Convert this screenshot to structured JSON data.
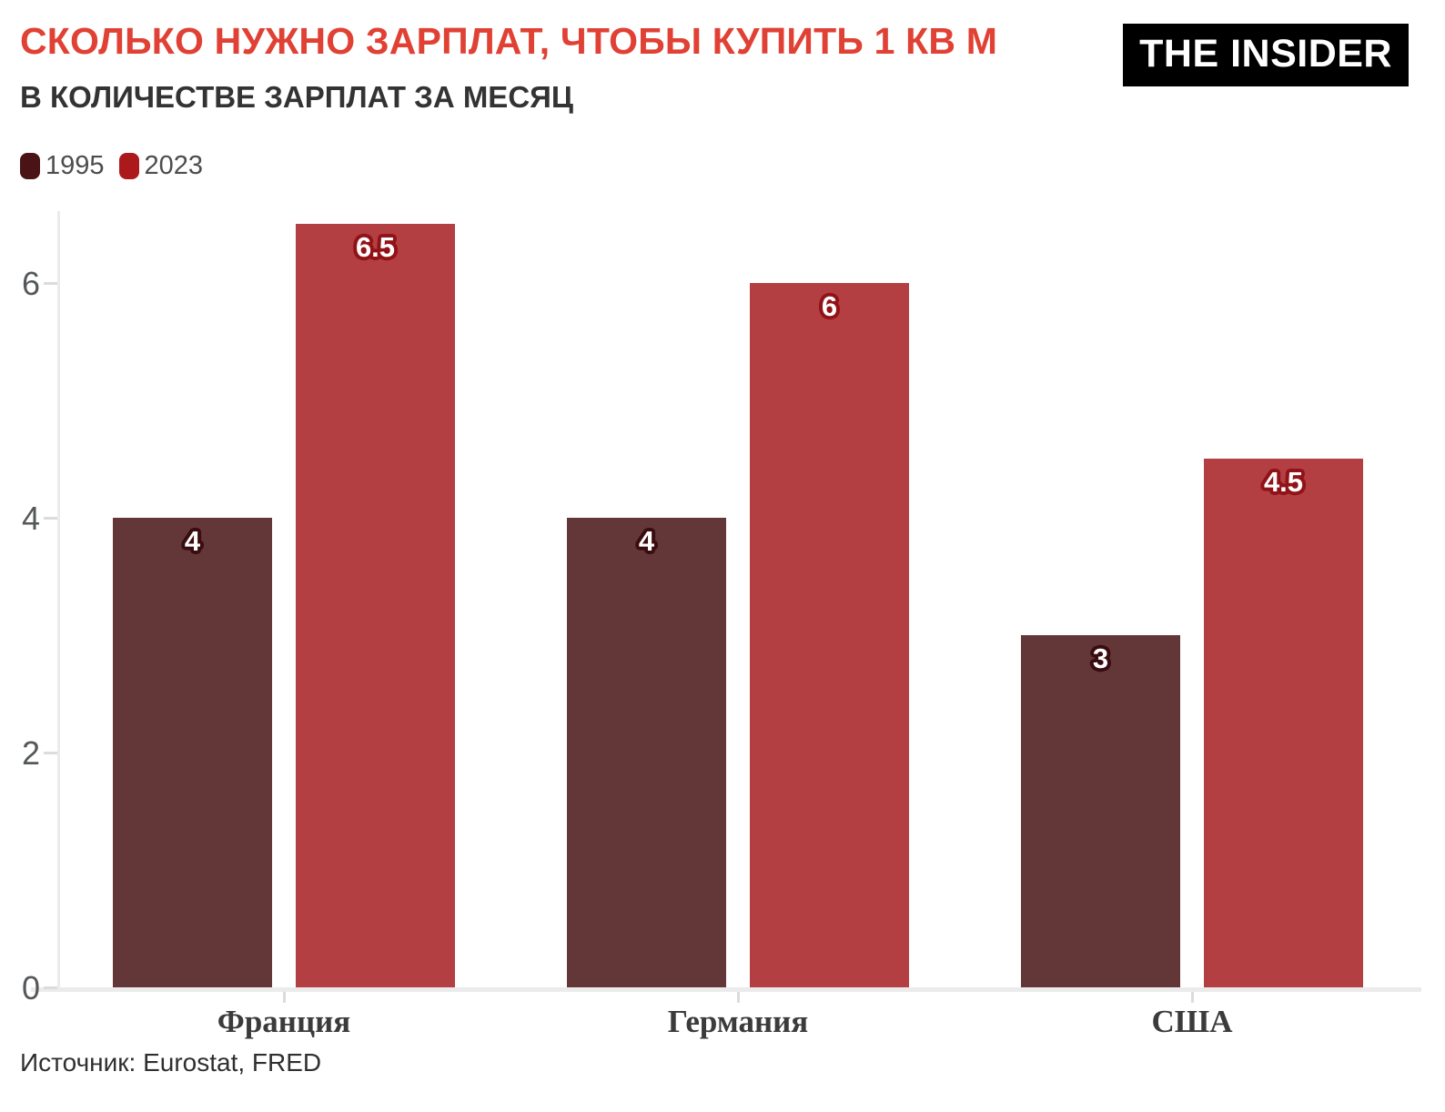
{
  "header": {
    "title": "СКОЛЬКО НУЖНО ЗАРПЛАТ, ЧТОБЫ КУПИТЬ 1 КВ М",
    "subtitle": "В КОЛИЧЕСТВЕ ЗАРПЛАТ ЗА МЕСЯЦ",
    "logo": "THE INSIDER"
  },
  "legend": {
    "items": [
      {
        "label": "1995",
        "color": "#4a1417"
      },
      {
        "label": "2023",
        "color": "#ac191d"
      }
    ]
  },
  "chart_data": {
    "type": "bar",
    "categories": [
      "Франция",
      "Германия",
      "США"
    ],
    "series": [
      {
        "name": "1995",
        "values": [
          4,
          4,
          3
        ],
        "color": "#633638",
        "label_stroke": "#3a0d10"
      },
      {
        "name": "2023",
        "values": [
          6.5,
          6,
          4.5
        ],
        "color": "#b43f43",
        "label_stroke": "#911318"
      }
    ],
    "yticks": [
      0,
      2,
      4,
      6
    ],
    "ylim": [
      0,
      6.6
    ],
    "xlabel": "",
    "ylabel": "",
    "grid": false,
    "legend_position": "top-left",
    "value_labels": true
  },
  "footer": {
    "source": "Источник: Eurostat, FRED"
  },
  "colors": {
    "title": "#e04134",
    "subtitle": "#333333",
    "legend_text": "#4d4d4d",
    "axis_line": "#ebebeb",
    "tick": "#dcdcdc",
    "y_label": "#55585a",
    "category_label": "#3b3b3b",
    "source_text": "#2f2f2f",
    "logo_bg": "#000000",
    "logo_fg": "#ffffff",
    "value_label_text": "#ffffff",
    "background": "#ffffff"
  }
}
